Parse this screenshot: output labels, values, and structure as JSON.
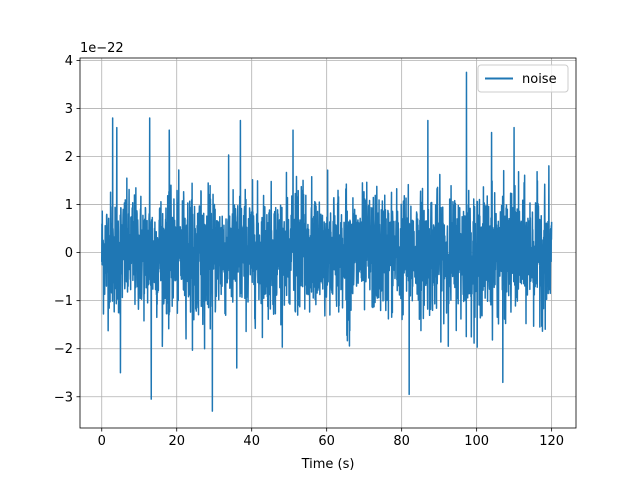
{
  "chart_data": {
    "type": "line",
    "title": "",
    "xlabel": "Time (s)",
    "ylabel": "",
    "offset_text": "1e−22",
    "scale_exponent": -22,
    "xlim": [
      -5.8,
      126.5
    ],
    "ylim": [
      -3.65,
      4.05
    ],
    "xticks": [
      0,
      20,
      40,
      60,
      80,
      100,
      120
    ],
    "xtick_labels": [
      "0",
      "20",
      "40",
      "60",
      "80",
      "100",
      "120"
    ],
    "yticks": [
      -3,
      -2,
      -1,
      0,
      1,
      2,
      3,
      4
    ],
    "ytick_labels": [
      "−3",
      "−2",
      "−1",
      "0",
      "1",
      "2",
      "3",
      "4"
    ],
    "grid": true,
    "legend": {
      "position": "top-right",
      "entries": [
        "noise"
      ]
    },
    "colors": {
      "series": "#1f77b4",
      "grid": "#b0b0b0",
      "axes": "#000000"
    },
    "series": [
      {
        "name": "noise",
        "x_range": [
          0,
          120
        ],
        "values_unit": "x1e-22",
        "notable_peaks": [
          {
            "x": 2.9,
            "y": 2.8
          },
          {
            "x": 4.0,
            "y": 2.6
          },
          {
            "x": 12.8,
            "y": 2.8
          },
          {
            "x": 18.0,
            "y": 2.55
          },
          {
            "x": 37.0,
            "y": 2.75
          },
          {
            "x": 51.0,
            "y": 2.55
          },
          {
            "x": 87.0,
            "y": 2.75
          },
          {
            "x": 97.3,
            "y": 3.75
          },
          {
            "x": 104.0,
            "y": 2.5
          },
          {
            "x": 110.0,
            "y": 2.6
          }
        ],
        "notable_troughs": [
          {
            "x": 13.2,
            "y": -3.05
          },
          {
            "x": 29.5,
            "y": -3.3
          },
          {
            "x": 82.0,
            "y": -2.95
          },
          {
            "x": 107.0,
            "y": -2.7
          },
          {
            "x": 5.0,
            "y": -2.5
          },
          {
            "x": 36.0,
            "y": -2.4
          }
        ]
      }
    ]
  }
}
